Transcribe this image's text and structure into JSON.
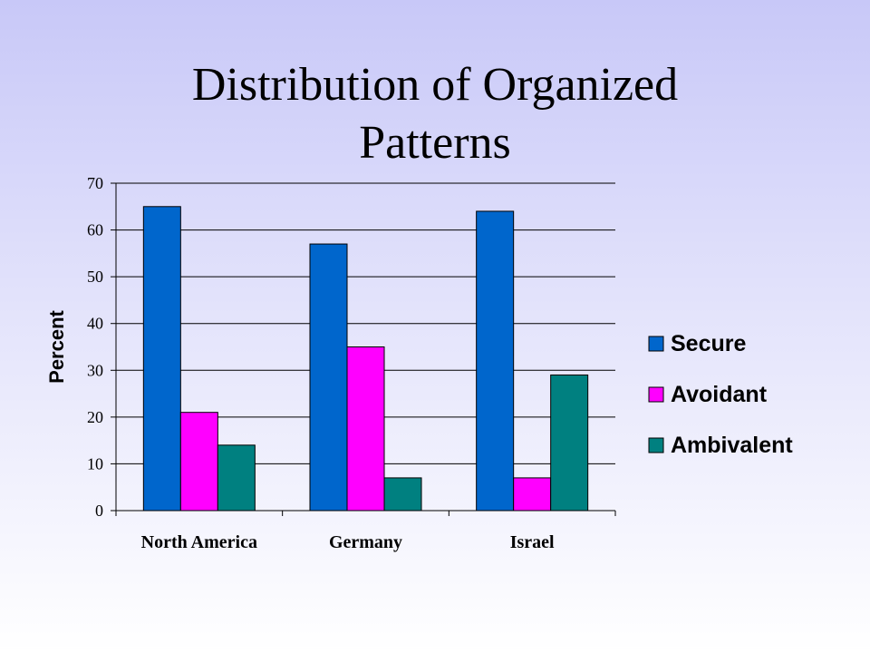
{
  "title_line1": "Distribution of Organized",
  "title_line2": "Patterns",
  "chart_data": {
    "type": "bar",
    "title": "Distribution of Organized Patterns",
    "xlabel": "",
    "ylabel": "Percent",
    "categories": [
      "North America",
      "Germany",
      "Israel"
    ],
    "series": [
      {
        "name": "Secure",
        "color": "#0066cc",
        "values": [
          65,
          57,
          64
        ]
      },
      {
        "name": "Avoidant",
        "color": "#ff00ff",
        "values": [
          21,
          35,
          7
        ]
      },
      {
        "name": "Ambivalent",
        "color": "#008080",
        "values": [
          14,
          7,
          29
        ]
      }
    ],
    "ylim": [
      0,
      70
    ],
    "yticks": [
      0,
      10,
      20,
      30,
      40,
      50,
      60,
      70
    ],
    "grid": true,
    "legend_position": "right"
  }
}
